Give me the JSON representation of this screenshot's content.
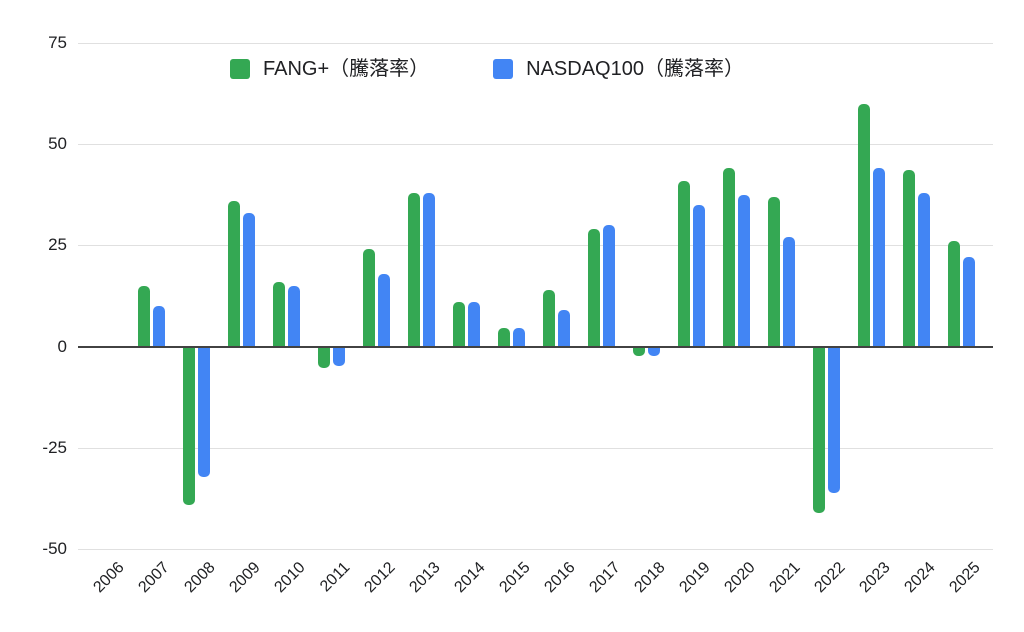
{
  "chart_data": {
    "type": "bar",
    "title": "",
    "xlabel": "",
    "ylabel": "",
    "categories": [
      "2006",
      "2007",
      "2008",
      "2009",
      "2010",
      "2011",
      "2012",
      "2013",
      "2014",
      "2015",
      "2016",
      "2017",
      "2018",
      "2019",
      "2020",
      "2021",
      "2022",
      "2023",
      "2024",
      "2025"
    ],
    "series": [
      {
        "name": "FANG+（騰落率）",
        "color": "#34A853",
        "values": [
          0,
          15,
          -39,
          36,
          16,
          -5,
          24,
          38,
          11,
          4.5,
          14,
          29,
          -2,
          41,
          44,
          37,
          -41,
          60,
          43.5,
          26
        ]
      },
      {
        "name": "NASDAQ100（騰落率）",
        "color": "#4285F4",
        "values": [
          0,
          10,
          -32,
          33,
          15,
          -4.5,
          18,
          38,
          11,
          4.5,
          9,
          30,
          -2,
          35,
          37.5,
          27,
          -36,
          44,
          38,
          22
        ]
      }
    ],
    "ylim": [
      -50,
      75
    ],
    "yticks": [
      75,
      50,
      25,
      0,
      -25,
      -50
    ],
    "grid": true,
    "legend_position": "top-center"
  },
  "colors": {
    "background": "#ffffff",
    "gridline": "#e0e0e0",
    "zero_axis": "#424242",
    "text": "#202124"
  }
}
